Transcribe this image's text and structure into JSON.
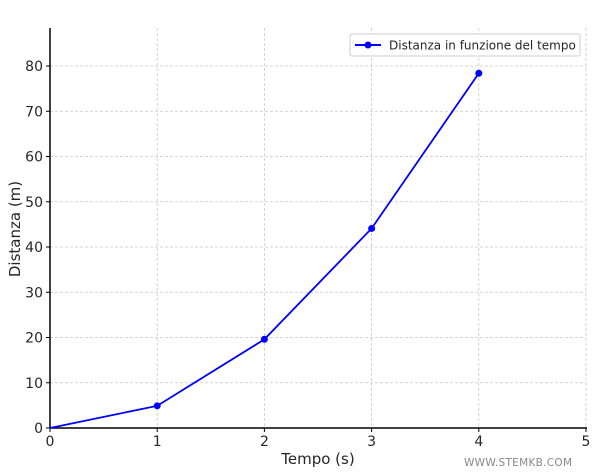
{
  "chart_data": {
    "type": "line",
    "title": "",
    "xlabel": "Tempo (s)",
    "ylabel": "Distanza (m)",
    "x": [
      0,
      1,
      2,
      3,
      4
    ],
    "series": [
      {
        "name": "Distanza in funzione del tempo",
        "values": [
          0,
          4.9,
          19.6,
          44.1,
          78.4
        ],
        "color": "#0000ff",
        "marker": "circle"
      }
    ],
    "xlim": [
      0,
      5
    ],
    "ylim": [
      0,
      88.4
    ],
    "xticks": [
      0,
      1,
      2,
      3,
      4,
      5
    ],
    "yticks": [
      0,
      10,
      20,
      30,
      40,
      50,
      60,
      70,
      80
    ],
    "grid": true,
    "legend_position": "upper right"
  },
  "watermark": "WWW.STEMKB.COM"
}
